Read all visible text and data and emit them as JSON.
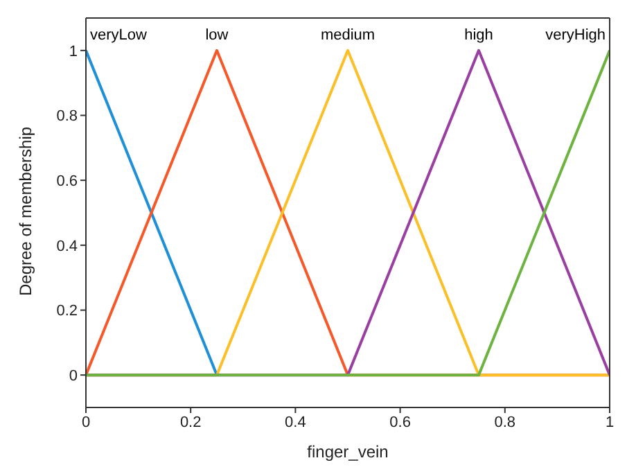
{
  "chart_data": {
    "type": "line",
    "xlabel": "finger_vein",
    "ylabel": "Degree of membership",
    "xlim": [
      0,
      1
    ],
    "xticks": [
      0,
      0.2,
      0.4,
      0.6,
      0.8,
      1
    ],
    "ylim": [
      -0.1,
      1.1
    ],
    "yticks": [
      0,
      0.2,
      0.4,
      0.6,
      0.8,
      1
    ],
    "grid": false,
    "legend": false,
    "marker": "none",
    "line_style": "solid",
    "series": [
      {
        "name": "veryLow",
        "color": "#1f8fd8",
        "x": [
          0,
          0.25
        ],
        "values": [
          1,
          0
        ]
      },
      {
        "name": "low",
        "color": "#f5592a",
        "x": [
          0,
          0.25,
          0.5,
          1
        ],
        "values": [
          0,
          1,
          0,
          0
        ]
      },
      {
        "name": "medium",
        "color": "#fbbf2a",
        "x": [
          0,
          0.25,
          0.5,
          0.75,
          1
        ],
        "values": [
          0,
          0,
          1,
          0,
          0
        ]
      },
      {
        "name": "high",
        "color": "#9a3fa2",
        "x": [
          0,
          0.5,
          0.75,
          1
        ],
        "values": [
          0,
          0,
          1,
          0
        ]
      },
      {
        "name": "veryHigh",
        "color": "#6cb33f",
        "x": [
          0,
          0.75,
          1
        ],
        "values": [
          0,
          0,
          1
        ]
      }
    ]
  }
}
